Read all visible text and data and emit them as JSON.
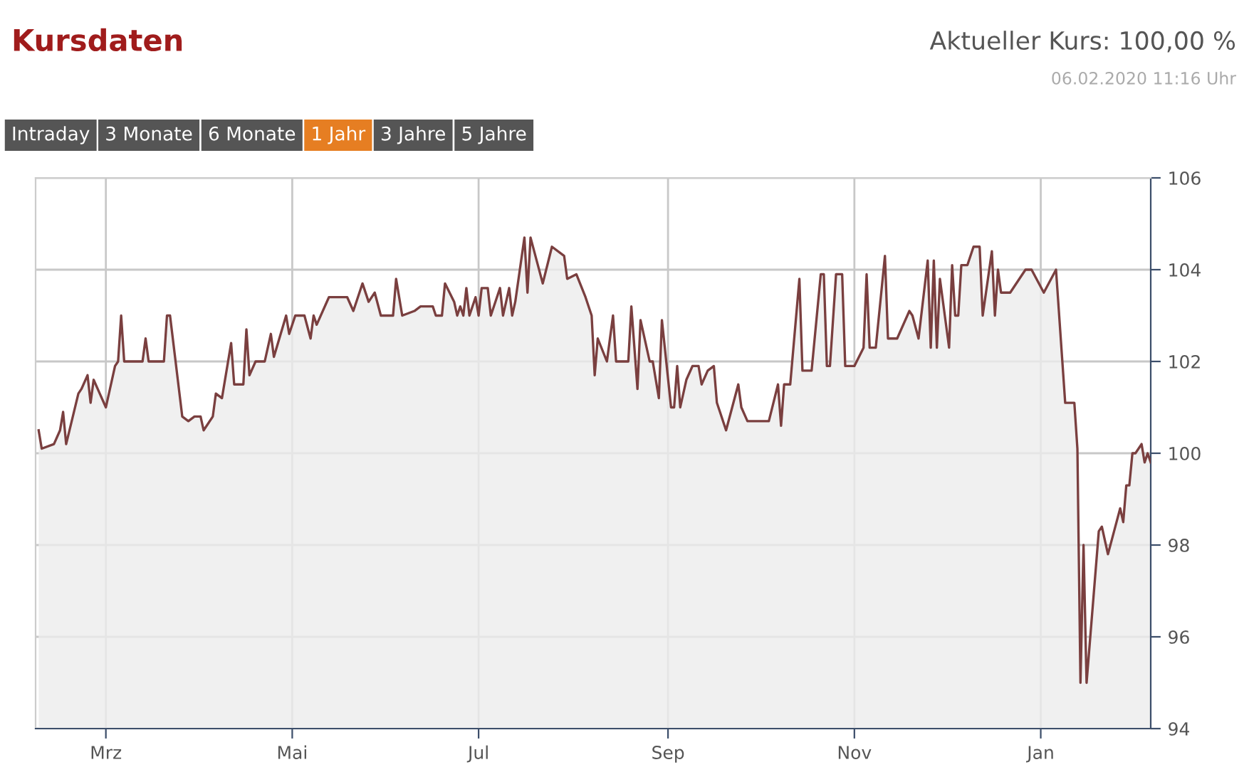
{
  "chart_data": {
    "type": "area",
    "title": "Kursdaten",
    "subtitle": "Aktueller Kurs: 100,00 %",
    "annotations": [
      "06.02.2020 11:16 Uhr",
      "Intraday",
      "3 Monate",
      "6 Monate",
      "1 Jahr",
      "3 Jahre",
      "5 Jahre"
    ],
    "xlim": [
      "2019-02-06",
      "2020-02-06"
    ],
    "xticks": [
      {
        "value": "2019-03-01",
        "label": "Mrz"
      },
      {
        "value": "2019-05-01",
        "label": "Mai"
      },
      {
        "value": "2019-07-01",
        "label": "Jul"
      },
      {
        "value": "2019-09-01",
        "label": "Sep"
      },
      {
        "value": "2019-11-01",
        "label": "Nov"
      },
      {
        "value": "2020-01-01",
        "label": "Jan"
      }
    ],
    "ylim": [
      94,
      106
    ],
    "yticks": [
      94,
      96,
      98,
      100,
      102,
      104,
      106
    ],
    "grid": true,
    "x": [
      "2019-02-07",
      "2019-02-08",
      "2019-02-12",
      "2019-02-14",
      "2019-02-15",
      "2019-02-16",
      "2019-02-20",
      "2019-02-21",
      "2019-02-23",
      "2019-02-24",
      "2019-02-25",
      "2019-02-27",
      "2019-03-01",
      "2019-03-04",
      "2019-03-05",
      "2019-03-06",
      "2019-03-07",
      "2019-03-13",
      "2019-03-14",
      "2019-03-15",
      "2019-03-20",
      "2019-03-21",
      "2019-03-22",
      "2019-03-26",
      "2019-03-28",
      "2019-03-30",
      "2019-04-01",
      "2019-04-02",
      "2019-04-05",
      "2019-04-06",
      "2019-04-08",
      "2019-04-11",
      "2019-04-12",
      "2019-04-15",
      "2019-04-16",
      "2019-04-17",
      "2019-04-19",
      "2019-04-22",
      "2019-04-24",
      "2019-04-25",
      "2019-04-29",
      "2019-04-30",
      "2019-05-02",
      "2019-05-05",
      "2019-05-07",
      "2019-05-08",
      "2019-05-09",
      "2019-05-13",
      "2019-05-17",
      "2019-05-19",
      "2019-05-21",
      "2019-05-24",
      "2019-05-26",
      "2019-05-28",
      "2019-05-30",
      "2019-06-03",
      "2019-06-04",
      "2019-06-06",
      "2019-06-10",
      "2019-06-12",
      "2019-06-13",
      "2019-06-16",
      "2019-06-17",
      "2019-06-19",
      "2019-06-20",
      "2019-06-23",
      "2019-06-24",
      "2019-06-25",
      "2019-06-26",
      "2019-06-27",
      "2019-06-28",
      "2019-06-30",
      "2019-07-01",
      "2019-07-02",
      "2019-07-04",
      "2019-07-05",
      "2019-07-07",
      "2019-07-08",
      "2019-07-09",
      "2019-07-11",
      "2019-07-12",
      "2019-07-13",
      "2019-07-16",
      "2019-07-17",
      "2019-07-18",
      "2019-07-22",
      "2019-07-25",
      "2019-07-29",
      "2019-07-30",
      "2019-08-02",
      "2019-08-05",
      "2019-08-07",
      "2019-08-08",
      "2019-08-09",
      "2019-08-12",
      "2019-08-14",
      "2019-08-15",
      "2019-08-19",
      "2019-08-20",
      "2019-08-22",
      "2019-08-23",
      "2019-08-26",
      "2019-08-27",
      "2019-08-29",
      "2019-08-30",
      "2019-09-02",
      "2019-09-03",
      "2019-09-04",
      "2019-09-05",
      "2019-09-07",
      "2019-09-09",
      "2019-09-11",
      "2019-09-12",
      "2019-09-14",
      "2019-09-16",
      "2019-09-17",
      "2019-09-20",
      "2019-09-22",
      "2019-09-24",
      "2019-09-25",
      "2019-09-27",
      "2019-10-01",
      "2019-10-04",
      "2019-10-07",
      "2019-10-08",
      "2019-10-09",
      "2019-10-11",
      "2019-10-14",
      "2019-10-15",
      "2019-10-18",
      "2019-10-21",
      "2019-10-22",
      "2019-10-23",
      "2019-10-24",
      "2019-10-26",
      "2019-10-28",
      "2019-10-29",
      "2019-11-01",
      "2019-11-04",
      "2019-11-05",
      "2019-11-06",
      "2019-11-08",
      "2019-11-11",
      "2019-11-12",
      "2019-11-15",
      "2019-11-19",
      "2019-11-20",
      "2019-11-22",
      "2019-11-25",
      "2019-11-26",
      "2019-11-27",
      "2019-11-28",
      "2019-11-29",
      "2019-12-02",
      "2019-12-03",
      "2019-12-04",
      "2019-12-05",
      "2019-12-06",
      "2019-12-08",
      "2019-12-10",
      "2019-12-12",
      "2019-12-13",
      "2019-12-16",
      "2019-12-17",
      "2019-12-18",
      "2019-12-19",
      "2019-12-22",
      "2019-12-27",
      "2019-12-29",
      "2020-01-02",
      "2020-01-06",
      "2020-01-09",
      "2020-01-12",
      "2020-01-13",
      "2020-01-14",
      "2020-01-15",
      "2020-01-16",
      "2020-01-20",
      "2020-01-21",
      "2020-01-23",
      "2020-01-27",
      "2020-01-28",
      "2020-01-29",
      "2020-01-30",
      "2020-01-31",
      "2020-02-01",
      "2020-02-03",
      "2020-02-04",
      "2020-02-05",
      "2020-02-06"
    ],
    "series": [
      {
        "color": "#7a3f3f",
        "values": [
          100.5,
          100.1,
          100.2,
          100.5,
          100.9,
          100.2,
          101.3,
          101.4,
          101.7,
          101.1,
          101.6,
          101.3,
          101.0,
          101.9,
          102.0,
          103.0,
          102.0,
          102.0,
          102.5,
          102.0,
          102.0,
          103.0,
          103.0,
          100.8,
          100.7,
          100.8,
          100.8,
          100.5,
          100.8,
          101.3,
          101.2,
          102.4,
          101.5,
          101.5,
          102.7,
          101.7,
          102.0,
          102.0,
          102.6,
          102.1,
          103.0,
          102.6,
          103.0,
          103.0,
          102.5,
          103.0,
          102.8,
          103.4,
          103.4,
          103.4,
          103.1,
          103.7,
          103.3,
          103.5,
          103.0,
          103.0,
          103.8,
          103.0,
          103.1,
          103.2,
          103.2,
          103.2,
          103.0,
          103.0,
          103.7,
          103.3,
          103.0,
          103.2,
          103.0,
          103.6,
          103.0,
          103.4,
          103.0,
          103.6,
          103.6,
          103.0,
          103.4,
          103.6,
          103.0,
          103.6,
          103.0,
          103.3,
          104.7,
          103.5,
          104.7,
          103.7,
          104.5,
          104.3,
          103.8,
          103.9,
          103.4,
          103.0,
          101.7,
          102.5,
          102.0,
          103.0,
          102.0,
          102.0,
          103.2,
          101.4,
          102.9,
          102.0,
          102.0,
          101.2,
          102.9,
          101.0,
          101.0,
          101.9,
          101.0,
          101.6,
          101.9,
          101.9,
          101.5,
          101.8,
          101.9,
          101.1,
          100.5,
          101.0,
          101.5,
          101.0,
          100.7,
          100.7,
          100.7,
          101.5,
          100.6,
          101.5,
          101.5,
          103.8,
          101.8,
          101.8,
          103.9,
          103.9,
          101.9,
          101.9,
          103.9,
          103.9,
          101.9,
          101.9,
          102.3,
          103.9,
          102.3,
          102.3,
          104.3,
          102.5,
          102.5,
          103.1,
          103.0,
          102.5,
          104.2,
          102.3,
          104.2,
          102.3,
          103.8,
          102.3,
          104.1,
          103.0,
          103.0,
          104.1,
          104.1,
          104.5,
          104.5,
          103.0,
          104.4,
          103.0,
          104.0,
          103.5,
          103.5,
          104.0,
          104.0,
          103.5,
          104.0,
          101.1,
          101.1,
          100.1,
          95.0,
          98.0,
          95.0,
          98.3,
          98.4,
          97.8,
          98.8,
          98.5,
          99.3,
          99.3,
          100.0,
          100.0,
          100.2,
          99.8,
          100.0,
          99.8
        ]
      }
    ]
  }
}
